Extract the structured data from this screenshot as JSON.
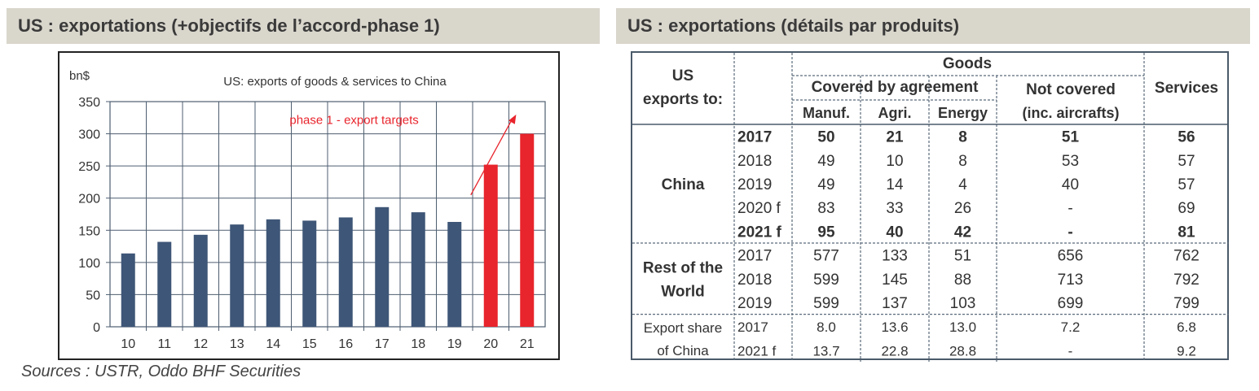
{
  "left_panel": {
    "title": "US : exportations (+objectifs de l’accord-phase 1)"
  },
  "right_panel": {
    "title": "US : exportations (détails par produits)"
  },
  "sources": "Sources : USTR, Oddo BHF Securities",
  "colors": {
    "header_bg": "#d9d6cc",
    "bar": "#3e5677",
    "bar_target": "#e8242c",
    "arrow": "#e8242c",
    "grid": "#4e5e70"
  },
  "chart_data": {
    "type": "bar",
    "title": "US: exports of goods & services to China",
    "ylabel": "bn$",
    "xlabel": "",
    "ylim": [
      0,
      350
    ],
    "yticks": [
      "0",
      "50",
      "100",
      "150",
      "200",
      "250",
      "300",
      "350"
    ],
    "categories": [
      "10",
      "11",
      "12",
      "13",
      "14",
      "15",
      "16",
      "17",
      "18",
      "19",
      "20",
      "21"
    ],
    "values": [
      114,
      132,
      143,
      159,
      167,
      165,
      170,
      186,
      178,
      163,
      252,
      300
    ],
    "target_flags": [
      false,
      false,
      false,
      false,
      false,
      false,
      false,
      false,
      false,
      false,
      true,
      true
    ],
    "annotation": "phase 1 - export targets",
    "grid": true
  },
  "table": {
    "header": {
      "row_label": "US exports to:",
      "goods": "Goods",
      "covered": "Covered by agreement",
      "not_covered": "Not covered",
      "not_covered_sub": "(inc. aircrafts)",
      "services": "Services",
      "cols": [
        "Manuf.",
        "Agri.",
        "Energy"
      ]
    },
    "groups": [
      {
        "label": [
          "China"
        ],
        "rows": [
          {
            "year": "2017",
            "bold": true,
            "values": [
              "50",
              "21",
              "8",
              "51",
              "56"
            ]
          },
          {
            "year": "2018",
            "bold": false,
            "values": [
              "49",
              "10",
              "8",
              "53",
              "57"
            ]
          },
          {
            "year": "2019",
            "bold": false,
            "values": [
              "49",
              "14",
              "4",
              "40",
              "57"
            ]
          },
          {
            "year": "2020 f",
            "bold": false,
            "values": [
              "83",
              "33",
              "26",
              "-",
              "69"
            ]
          },
          {
            "year": "2021 f",
            "bold": true,
            "values": [
              "95",
              "40",
              "42",
              "-",
              "81"
            ]
          }
        ]
      },
      {
        "label": [
          "Rest of the",
          "World"
        ],
        "rows": [
          {
            "year": "2017",
            "bold": false,
            "values": [
              "577",
              "133",
              "51",
              "656",
              "762"
            ]
          },
          {
            "year": "2018",
            "bold": false,
            "values": [
              "599",
              "145",
              "88",
              "713",
              "792"
            ]
          },
          {
            "year": "2019",
            "bold": false,
            "values": [
              "599",
              "137",
              "103",
              "699",
              "799"
            ]
          }
        ]
      },
      {
        "label": [
          "Export share",
          "of China"
        ],
        "rows": [
          {
            "year": "2017",
            "bold": false,
            "values": [
              "8.0",
              "13.6",
              "13.0",
              "7.2",
              "6.8"
            ]
          },
          {
            "year": "2021 f",
            "bold": false,
            "values": [
              "13.7",
              "22.8",
              "28.8",
              "-",
              "9.2"
            ]
          }
        ]
      }
    ]
  }
}
